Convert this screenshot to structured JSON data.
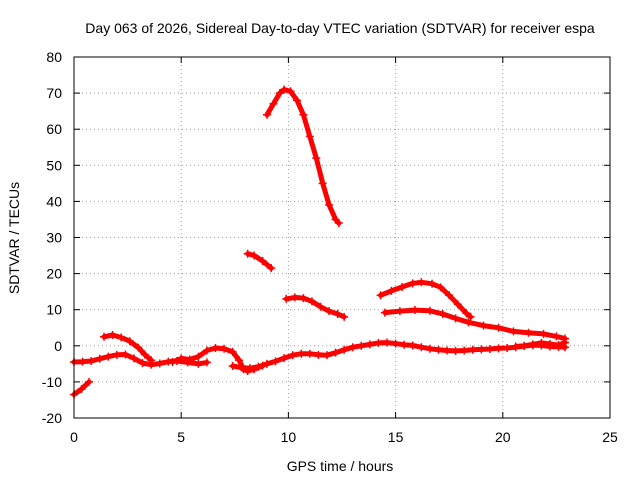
{
  "chart_data": {
    "type": "line",
    "title": "Day 063 of 2026, Sidereal Day-to-day VTEC variation (SDTVAR) for receiver espa",
    "xlabel": "GPS time / hours",
    "ylabel": "SDTVAR / TECUs",
    "xlim": [
      0,
      25
    ],
    "ylim": [
      -20,
      80
    ],
    "xticks": [
      0,
      5,
      10,
      15,
      20,
      25
    ],
    "yticks": [
      -20,
      -10,
      0,
      10,
      20,
      30,
      40,
      50,
      60,
      70,
      80
    ],
    "grid": true,
    "series_color": "#ff0000",
    "series": [
      {
        "name": "arc-high",
        "points": [
          [
            9.0,
            64
          ],
          [
            9.3,
            67
          ],
          [
            9.6,
            70
          ],
          [
            9.8,
            71
          ],
          [
            10.1,
            70.5
          ],
          [
            10.4,
            68
          ],
          [
            10.7,
            64
          ],
          [
            11.0,
            58
          ],
          [
            11.3,
            52
          ],
          [
            11.6,
            45
          ],
          [
            11.9,
            39
          ],
          [
            12.2,
            35
          ],
          [
            12.35,
            34
          ]
        ]
      },
      {
        "name": "arc-mid",
        "points": [
          [
            8.1,
            25.5
          ],
          [
            8.4,
            25
          ],
          [
            8.8,
            23.5
          ],
          [
            9.2,
            21.5
          ]
        ]
      },
      {
        "name": "arc-upper-right",
        "points": [
          [
            14.3,
            14
          ],
          [
            14.8,
            15.2
          ],
          [
            15.3,
            16.3
          ],
          [
            15.8,
            17.3
          ],
          [
            16.2,
            17.6
          ],
          [
            16.7,
            17.2
          ],
          [
            17.1,
            16.2
          ],
          [
            17.5,
            14
          ],
          [
            17.9,
            11.5
          ],
          [
            18.3,
            9
          ],
          [
            18.5,
            8
          ]
        ]
      },
      {
        "name": "arc-10to13",
        "points": [
          [
            9.9,
            13
          ],
          [
            10.3,
            13.4
          ],
          [
            10.7,
            13.2
          ],
          [
            11.1,
            12.3
          ],
          [
            11.5,
            10.8
          ],
          [
            11.9,
            9.6
          ],
          [
            12.3,
            8.8
          ],
          [
            12.6,
            8
          ]
        ]
      },
      {
        "name": "arc-right-descend",
        "points": [
          [
            14.5,
            9.2
          ],
          [
            15.2,
            9.6
          ],
          [
            15.9,
            9.9
          ],
          [
            16.6,
            9.7
          ],
          [
            17.2,
            8.8
          ],
          [
            17.8,
            7.6
          ],
          [
            18.4,
            6.5
          ],
          [
            19.1,
            5.6
          ],
          [
            19.8,
            5
          ],
          [
            20.5,
            4
          ],
          [
            21.2,
            3.6
          ],
          [
            21.9,
            3.3
          ],
          [
            22.5,
            2.6
          ],
          [
            22.9,
            2
          ]
        ]
      },
      {
        "name": "arc-low-left",
        "points": [
          [
            0,
            -13.5
          ],
          [
            0.35,
            -12
          ],
          [
            0.7,
            -10
          ]
        ]
      },
      {
        "name": "arc-left",
        "points": [
          [
            0,
            -4.5
          ],
          [
            0.4,
            -4.4
          ],
          [
            0.8,
            -4.2
          ],
          [
            1.2,
            -3.6
          ],
          [
            1.6,
            -3
          ],
          [
            2.0,
            -2.5
          ],
          [
            2.4,
            -2.4
          ],
          [
            2.8,
            -3.5
          ],
          [
            3.2,
            -4.8
          ],
          [
            3.6,
            -5.2
          ],
          [
            4.0,
            -4.9
          ],
          [
            4.4,
            -4.4
          ],
          [
            4.8,
            -4.2
          ],
          [
            5.3,
            -4.6
          ],
          [
            5.8,
            -5
          ],
          [
            6.2,
            -4.6
          ]
        ]
      },
      {
        "name": "arc-left-bump",
        "points": [
          [
            1.4,
            2.5
          ],
          [
            1.8,
            3
          ],
          [
            2.2,
            2.3
          ],
          [
            2.6,
            1.3
          ],
          [
            3.0,
            -0.5
          ],
          [
            3.3,
            -2.4
          ],
          [
            3.6,
            -4
          ]
        ]
      },
      {
        "name": "arc-mid-left",
        "points": [
          [
            4.6,
            -4.5
          ],
          [
            5.0,
            -3.5
          ],
          [
            5.4,
            -3.8
          ],
          [
            5.8,
            -3
          ],
          [
            6.2,
            -1.3
          ],
          [
            6.6,
            -0.6
          ],
          [
            7.0,
            -0.8
          ],
          [
            7.4,
            -1.7
          ],
          [
            7.7,
            -4
          ],
          [
            7.9,
            -6.5
          ],
          [
            8.1,
            -7
          ],
          [
            8.4,
            -6.5
          ],
          [
            8.8,
            -5.5
          ]
        ]
      },
      {
        "name": "arc-main-long",
        "points": [
          [
            7.4,
            -5.6
          ],
          [
            7.8,
            -6
          ],
          [
            8.2,
            -6.2
          ],
          [
            8.6,
            -5.8
          ],
          [
            9.0,
            -5
          ],
          [
            9.4,
            -4.3
          ],
          [
            9.8,
            -3.4
          ],
          [
            10.2,
            -2.6
          ],
          [
            10.6,
            -2.2
          ],
          [
            11.0,
            -2.2
          ],
          [
            11.4,
            -2.5
          ],
          [
            11.8,
            -2.6
          ],
          [
            12.2,
            -1.9
          ],
          [
            12.6,
            -1.1
          ],
          [
            13.0,
            -0.4
          ],
          [
            13.4,
            0
          ],
          [
            13.8,
            0.4
          ],
          [
            14.2,
            0.8
          ],
          [
            14.6,
            0.9
          ],
          [
            15.0,
            0.6
          ],
          [
            15.4,
            0.3
          ],
          [
            15.8,
            0.1
          ],
          [
            16.2,
            -0.4
          ],
          [
            16.6,
            -0.8
          ],
          [
            17.0,
            -1.1
          ],
          [
            17.4,
            -1.3
          ],
          [
            17.8,
            -1.4
          ],
          [
            18.2,
            -1.3
          ],
          [
            18.6,
            -1.1
          ],
          [
            19.0,
            -1.0
          ],
          [
            19.4,
            -0.9
          ],
          [
            19.8,
            -0.7
          ],
          [
            20.2,
            -0.6
          ],
          [
            20.6,
            -0.4
          ],
          [
            21.0,
            -0.1
          ],
          [
            21.4,
            0.2
          ],
          [
            21.8,
            0.1
          ],
          [
            22.2,
            -0.2
          ],
          [
            22.6,
            -0.3
          ],
          [
            22.9,
            -0.4
          ]
        ]
      },
      {
        "name": "arc-right-low",
        "points": [
          [
            20.6,
            -0.2
          ],
          [
            21.0,
            0
          ],
          [
            21.4,
            0.4
          ],
          [
            21.8,
            0.8
          ],
          [
            22.2,
            0.5
          ],
          [
            22.6,
            0.2
          ],
          [
            22.9,
            0.9
          ]
        ]
      }
    ]
  }
}
